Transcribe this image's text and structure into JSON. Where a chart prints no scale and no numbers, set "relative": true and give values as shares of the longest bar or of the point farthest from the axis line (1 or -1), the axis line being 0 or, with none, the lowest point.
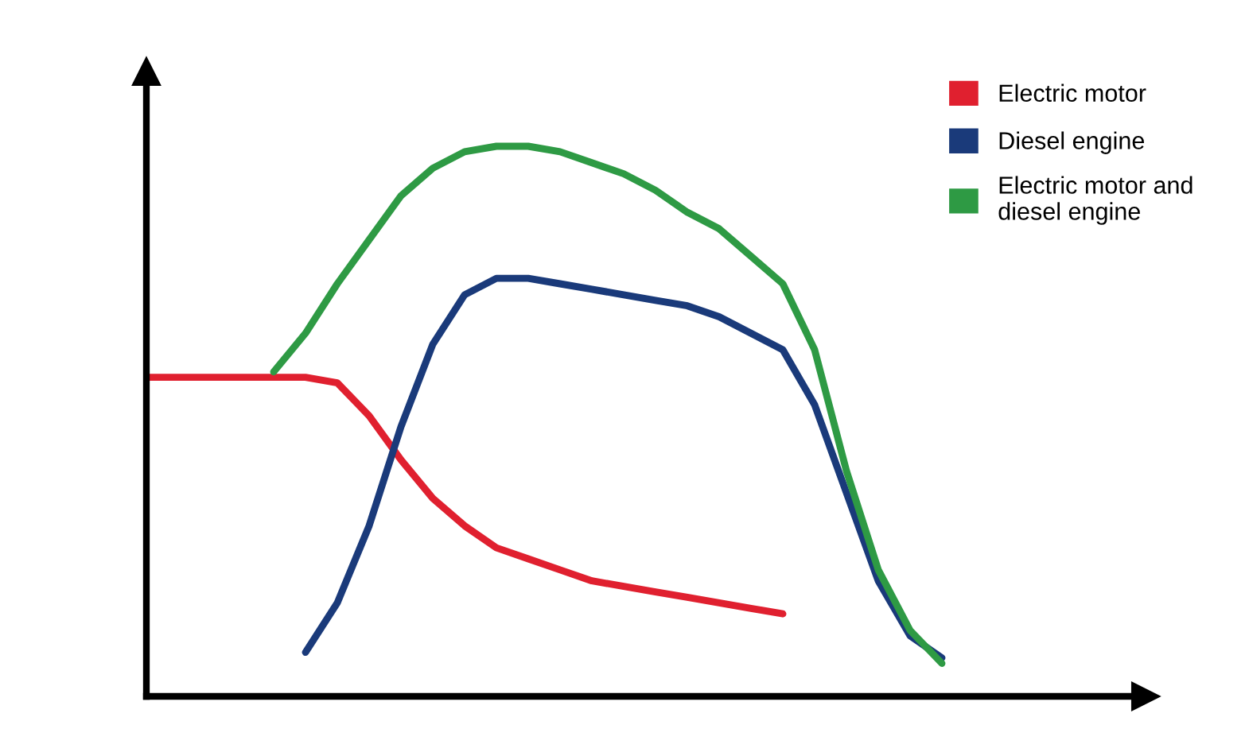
{
  "chart_data": {
    "type": "line",
    "relative": true,
    "legend": "top right",
    "grid": false,
    "marker": "none",
    "line_style": "solid",
    "categories": [
      null,
      null,
      null,
      null,
      null,
      null,
      null,
      null,
      null,
      null,
      null,
      null,
      null,
      null,
      null,
      null,
      null,
      null,
      null,
      null,
      null,
      null,
      null,
      null,
      null,
      null,
      null
    ],
    "series": [
      {
        "name": "Electric motor",
        "color": "#e0202f",
        "values": [
          0.58,
          0.58,
          0.58,
          0.58,
          0.58,
          0.58,
          0.57,
          0.51,
          0.43,
          0.36,
          0.31,
          0.27,
          0.25,
          0.23,
          0.21,
          0.2,
          0.19,
          0.18,
          0.17,
          0.16,
          0.15,
          null,
          null,
          null,
          null,
          null,
          null
        ]
      },
      {
        "name": "Diesel engine",
        "color": "#1a3a7a",
        "values": [
          null,
          null,
          null,
          null,
          null,
          0.08,
          0.17,
          0.31,
          0.49,
          0.64,
          0.73,
          0.76,
          0.76,
          0.75,
          0.74,
          0.73,
          0.72,
          0.71,
          0.69,
          0.66,
          0.63,
          0.53,
          0.37,
          0.21,
          0.11,
          0.07,
          null
        ]
      },
      {
        "name": "Electric motor and\ndiesel engine",
        "color": "#2e9a44",
        "values": [
          null,
          null,
          null,
          null,
          0.59,
          0.66,
          0.75,
          0.83,
          0.91,
          0.96,
          0.99,
          1.0,
          1.0,
          0.99,
          0.97,
          0.95,
          0.92,
          0.88,
          0.85,
          0.8,
          0.75,
          0.63,
          0.41,
          0.23,
          0.12,
          0.06,
          null
        ]
      }
    ]
  }
}
